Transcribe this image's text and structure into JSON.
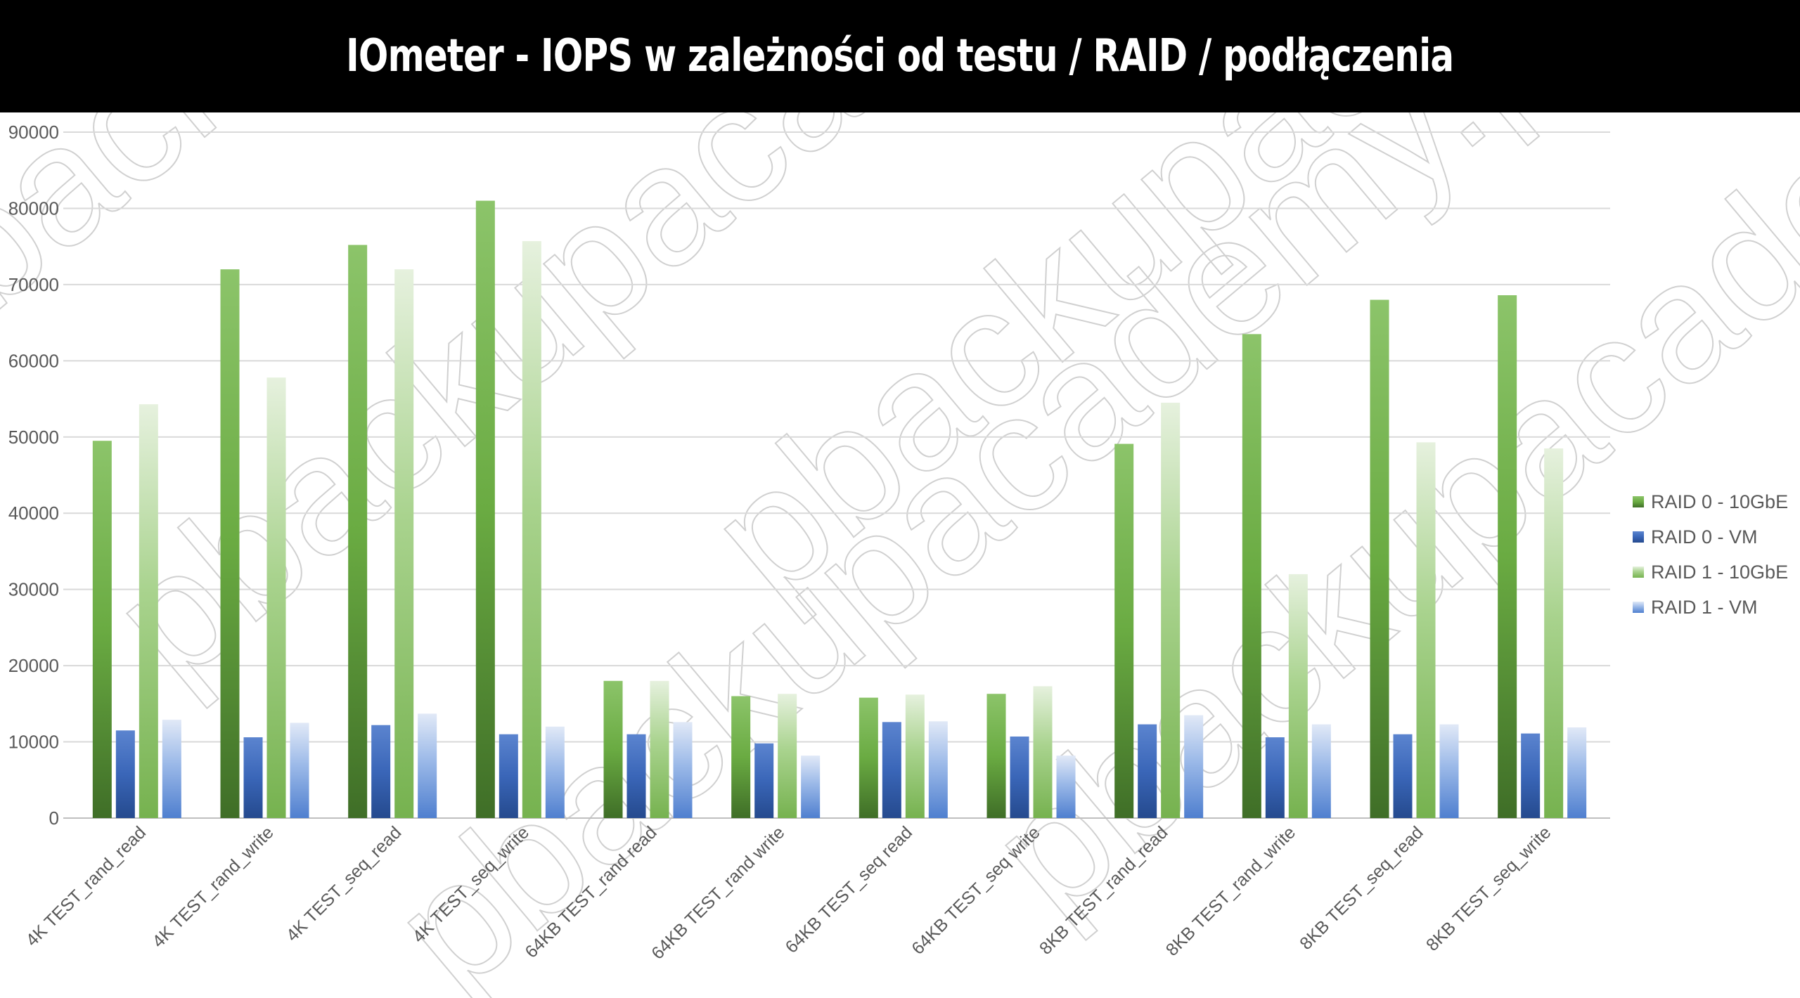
{
  "title": "IOmeter - IOPS w zależności od testu / RAID / podłączenia",
  "watermark": "pbackupacademy.pl",
  "chart_data": {
    "type": "bar",
    "title": "IOmeter - IOPS w zależności od testu / RAID / podłączenia",
    "xlabel": "",
    "ylabel": "",
    "ylim": [
      0,
      90000
    ],
    "yticks": [
      0,
      10000,
      20000,
      30000,
      40000,
      50000,
      60000,
      70000,
      80000,
      90000
    ],
    "ytick_labels": [
      "0",
      "10000",
      "20000",
      "30000",
      "40000",
      "50000",
      "60000",
      "70000",
      "80000",
      "90000"
    ],
    "grid": true,
    "legend_position": "right",
    "categories": [
      "4K TEST_rand_read",
      "4K TEST_rand_write",
      "4K TEST_seq_read",
      "4K TEST_seq_write",
      "64KB TEST_rand read",
      "64KB TEST_rand write",
      "64KB TEST_seq read",
      "64KB TEST_seq write",
      "8KB TEST_rand_read",
      "8KB TEST_rand_write",
      "8KB TEST_seq_read",
      "8KB TEST_seq_write"
    ],
    "series": [
      {
        "name": "RAID 0 - 10GbE",
        "color": "#4e8f2e",
        "values": [
          49500,
          72000,
          75200,
          81000,
          18000,
          16000,
          15800,
          16300,
          49100,
          63500,
          68000,
          68600
        ]
      },
      {
        "name": "RAID 0 - VM",
        "color": "#2f5aa8",
        "values": [
          11500,
          10600,
          12200,
          11000,
          11000,
          9800,
          12600,
          10700,
          12300,
          10600,
          11000,
          11100
        ]
      },
      {
        "name": "RAID 1 - 10GbE",
        "color": "#8fc46c",
        "values": [
          54300,
          57800,
          72000,
          75700,
          18000,
          16300,
          16200,
          17300,
          54500,
          32000,
          49300,
          48500
        ]
      },
      {
        "name": "RAID 1 - VM",
        "color": "#7fa6e0",
        "values": [
          12900,
          12500,
          13700,
          12000,
          12600,
          8200,
          12700,
          8200,
          13500,
          12300,
          12300,
          11900
        ]
      }
    ]
  }
}
